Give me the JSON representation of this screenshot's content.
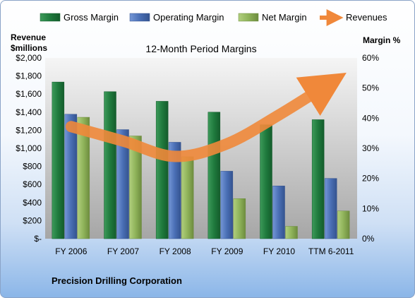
{
  "chart_data": {
    "type": "bar",
    "title": "12-Month Period Margins",
    "company": "Precision Drilling Corporation",
    "left_axis_label_line1": "Revenue",
    "left_axis_label_line2": "$millions",
    "right_axis_label": "Margin %",
    "categories": [
      "FY 2006",
      "FY 2007",
      "FY 2008",
      "FY 2009",
      "FY 2010",
      "TTM 6-2011"
    ],
    "left_ticks": [
      "$-",
      "$200",
      "$400",
      "$600",
      "$800",
      "$1,000",
      "$1,200",
      "$1,400",
      "$1,600",
      "$1,800",
      "$2,000"
    ],
    "right_ticks": [
      "0%",
      "10%",
      "20%",
      "30%",
      "40%",
      "50%",
      "60%"
    ],
    "ylim_left": [
      0,
      2000
    ],
    "ylim_right": [
      0,
      60
    ],
    "grid": false,
    "legend_position": "top",
    "series": [
      {
        "name": "Gross Margin",
        "kind": "bar",
        "axis": "right",
        "color": "#1f7a3d",
        "values": [
          52,
          48.8,
          45.6,
          42,
          37.8,
          39.5
        ]
      },
      {
        "name": "Operating Margin",
        "kind": "bar",
        "axis": "right",
        "color": "#4a6fb5",
        "values": [
          41.3,
          36.2,
          32,
          22.4,
          17.5,
          20
        ]
      },
      {
        "name": "Net Margin",
        "kind": "bar",
        "axis": "right",
        "color": "#8fb35a",
        "values": [
          40.3,
          34.1,
          27.2,
          13.3,
          4.1,
          9.2
        ]
      },
      {
        "name": "Revenues",
        "kind": "trend-arrow",
        "axis": "left",
        "color": "#f0883a",
        "values": [
          1240,
          1080,
          910,
          1050,
          1370,
          1730
        ]
      }
    ]
  }
}
